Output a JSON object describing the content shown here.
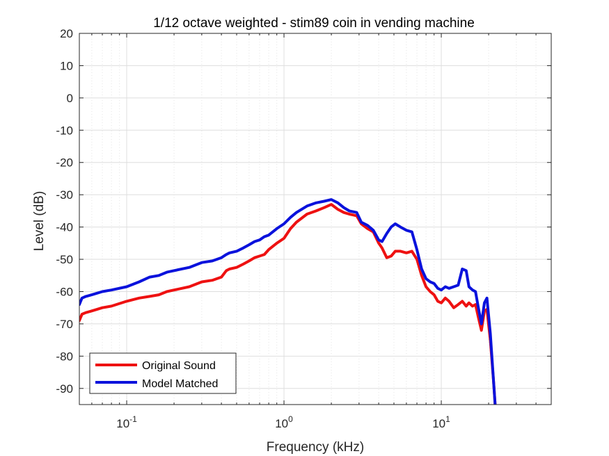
{
  "chart_data": {
    "type": "line",
    "title": "1/12 octave weighted - stim89 coin in vending machine",
    "xlabel": "Frequency (kHz)",
    "ylabel": "Level (dB)",
    "xscale": "log",
    "xlim": [
      0.05,
      50
    ],
    "ylim": [
      -95,
      20
    ],
    "grid": true,
    "legend_position": "bottom-left",
    "y_ticks": [
      20,
      10,
      0,
      -10,
      -20,
      -30,
      -40,
      -50,
      -60,
      -70,
      -80,
      -90
    ],
    "x_ticks": [
      {
        "value": 0.1,
        "base": "10",
        "exp": "-1"
      },
      {
        "value": 1,
        "base": "10",
        "exp": "0"
      },
      {
        "value": 10,
        "base": "10",
        "exp": "1"
      }
    ],
    "series": [
      {
        "name": "Original Sound",
        "color": "#ee1111",
        "x": [
          0.05,
          0.052,
          0.055,
          0.06,
          0.07,
          0.08,
          0.1,
          0.12,
          0.14,
          0.16,
          0.18,
          0.2,
          0.25,
          0.3,
          0.35,
          0.4,
          0.43,
          0.45,
          0.5,
          0.55,
          0.6,
          0.65,
          0.7,
          0.75,
          0.8,
          0.9,
          1.0,
          1.1,
          1.2,
          1.4,
          1.6,
          1.8,
          2.0,
          2.2,
          2.4,
          2.6,
          2.9,
          3.1,
          3.4,
          3.7,
          4.0,
          4.2,
          4.5,
          4.8,
          5.1,
          5.5,
          6.0,
          6.5,
          7.0,
          7.5,
          8.0,
          8.5,
          9.0,
          9.5,
          10.0,
          10.6,
          11.2,
          12.0,
          12.8,
          13.6,
          14.4,
          15.0,
          15.8,
          16.5,
          17.2,
          18.0,
          18.8,
          19.5,
          20.5,
          21.5,
          22.0
        ],
        "y": [
          -69,
          -67,
          -66.5,
          -66,
          -65,
          -64.5,
          -63,
          -62,
          -61.5,
          -61,
          -60,
          -59.5,
          -58.5,
          -57,
          -56.5,
          -55.5,
          -53.5,
          -53,
          -52.5,
          -51.5,
          -50.5,
          -49.5,
          -49,
          -48.5,
          -47,
          -45,
          -43.5,
          -40.5,
          -38.5,
          -36,
          -35,
          -34,
          -33,
          -34.5,
          -35.5,
          -36,
          -36.5,
          -39,
          -40.5,
          -41.5,
          -45,
          -46.5,
          -49.5,
          -49,
          -47.5,
          -47.5,
          -48,
          -47.5,
          -50,
          -55,
          -58.5,
          -60,
          -61,
          -63,
          -63.5,
          -62,
          -63,
          -65,
          -64,
          -63,
          -64.5,
          -63.5,
          -64.5,
          -64,
          -68,
          -72,
          -66,
          -65.5,
          -75,
          -88,
          -95
        ]
      },
      {
        "name": "Model Matched",
        "color": "#0a12dc",
        "x": [
          0.05,
          0.052,
          0.055,
          0.06,
          0.07,
          0.08,
          0.1,
          0.12,
          0.14,
          0.16,
          0.18,
          0.2,
          0.25,
          0.3,
          0.35,
          0.4,
          0.43,
          0.45,
          0.5,
          0.55,
          0.6,
          0.65,
          0.7,
          0.75,
          0.8,
          0.9,
          1.0,
          1.1,
          1.2,
          1.4,
          1.6,
          1.8,
          2.0,
          2.2,
          2.4,
          2.6,
          2.9,
          3.1,
          3.4,
          3.7,
          4.0,
          4.2,
          4.5,
          4.8,
          5.1,
          5.5,
          6.0,
          6.5,
          7.0,
          7.5,
          8.0,
          8.5,
          9.0,
          9.5,
          10.0,
          10.6,
          11.2,
          12.0,
          12.8,
          13.6,
          14.4,
          15.0,
          15.8,
          16.5,
          17.2,
          18.0,
          18.8,
          19.5,
          20.5,
          21.5,
          22.0
        ],
        "y": [
          -64,
          -62,
          -61.5,
          -61,
          -60,
          -59.5,
          -58.5,
          -57,
          -55.5,
          -55,
          -54,
          -53.5,
          -52.5,
          -51,
          -50.5,
          -49.5,
          -48.5,
          -48,
          -47.5,
          -46.5,
          -45.5,
          -44.5,
          -44,
          -43,
          -42.5,
          -40.5,
          -39,
          -37,
          -35.5,
          -33.5,
          -32.5,
          -32,
          -31.5,
          -32.5,
          -34,
          -35,
          -35.5,
          -38.5,
          -39.5,
          -41,
          -44,
          -44.5,
          -42,
          -40,
          -39,
          -40,
          -41,
          -41.5,
          -47,
          -53,
          -56,
          -57,
          -57.5,
          -59,
          -59.5,
          -58.5,
          -59,
          -58.5,
          -58,
          -53,
          -53.5,
          -58.5,
          -59.5,
          -60,
          -65,
          -70,
          -63.5,
          -62,
          -73,
          -88,
          -95
        ]
      }
    ]
  }
}
